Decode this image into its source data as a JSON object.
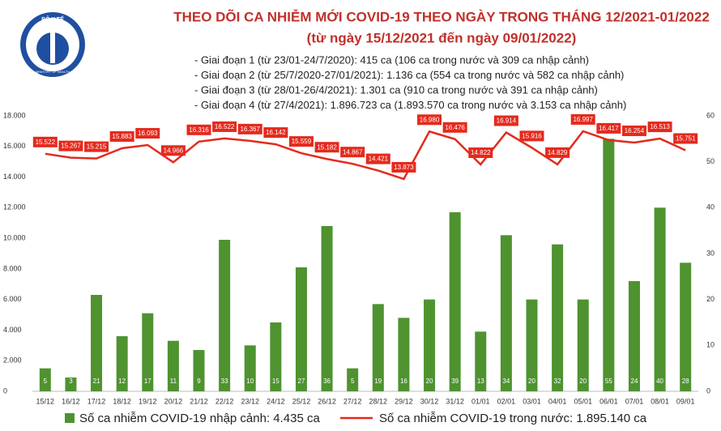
{
  "header": {
    "logo_text": "BỘ Y TẾ",
    "logo_subtext": "MINISTRY OF HEALTH"
  },
  "chart_data": {
    "type": "bar-line",
    "title": "THEO DÕI CA NHIỄM MỚI COVID-19 THEO NGÀY TRONG THÁNG 12/2021-01/2022",
    "subtitle": "(từ ngày 15/12/2021 đến ngày 09/01/2022)",
    "annotations": [
      "- Giai đoạn 1 (từ 23/01-24/7/2020): 415 ca (106 ca trong nước và 309 ca nhập cảnh)",
      "- Giai đoạn 2 (từ 25/7/2020-27/01/2021): 1.136 ca (554 ca trong nước và 582 ca nhập cảnh)",
      "- Giai đoạn 3 (từ 28/01-26/4/2021): 1.301 ca (910 ca trong nước và 391 ca nhập cảnh)",
      "- Giai đoạn 4 (từ 27/4/2021): 1.896.723 ca (1.893.570 ca trong nước và 3.153 ca nhập cảnh)"
    ],
    "categories": [
      "15/12",
      "16/12",
      "17/12",
      "18/12",
      "19/12",
      "20/12",
      "21/12",
      "22/12",
      "23/12",
      "24/12",
      "25/12",
      "26/12",
      "27/12",
      "28/12",
      "29/12",
      "30/12",
      "31/12",
      "01/01",
      "02/01",
      "03/01",
      "04/01",
      "05/01",
      "06/01",
      "07/01",
      "08/01",
      "09/01"
    ],
    "series": [
      {
        "name": "Số ca nhiễm COVID-19 nhập cảnh: 4.435 ca",
        "color": "#4e9330",
        "axis": "y2",
        "values": [
          5,
          3,
          21,
          12,
          17,
          11,
          9,
          33,
          10,
          15,
          27,
          36,
          5,
          19,
          16,
          20,
          39,
          13,
          34,
          20,
          32,
          20,
          55,
          24,
          40,
          28
        ]
      },
      {
        "name": "Số ca nhiễm COVID-19 trong nước: 1.895.140 ca",
        "color": "#e42a1d",
        "values": [
          15522,
          15267,
          15215,
          15883,
          16093,
          14966,
          16316,
          16522,
          16367,
          16142,
          15559,
          15182,
          14867,
          14421,
          13873,
          16980,
          16476,
          14822,
          16914,
          15916,
          14829,
          16997,
          16417,
          16254,
          16513,
          15751
        ],
        "value_labels": [
          "15.522",
          "15.267",
          "15.215",
          "15.883",
          "16.093",
          "14.966",
          "16.316",
          "16.522",
          "16.367",
          "16.142",
          "15.559",
          "15.182",
          "14.867",
          "14.421",
          "13.873",
          "16.980",
          "16.476",
          "14.822",
          "16.914",
          "15.916",
          "14.829",
          "16.997",
          "16.417",
          "16.254",
          "16.513",
          "15.751"
        ]
      }
    ],
    "ylim": [
      0,
      18000
    ],
    "yticks": [
      {
        "value": 0,
        "label": "0"
      },
      {
        "value": 2000,
        "label": "2.000"
      },
      {
        "value": 4000,
        "label": "4.000"
      },
      {
        "value": 6000,
        "label": "6.000"
      },
      {
        "value": 8000,
        "label": "8.000"
      },
      {
        "value": 10000,
        "label": "10.000"
      },
      {
        "value": 12000,
        "label": "12.000"
      },
      {
        "value": 14000,
        "label": "14.000"
      },
      {
        "value": 16000,
        "label": "16.000"
      },
      {
        "value": 18000,
        "label": "18.000"
      }
    ],
    "y2lim": [
      0,
      60
    ],
    "y2ticks": [
      0,
      10,
      20,
      30,
      40,
      50,
      60
    ],
    "grid": false
  }
}
